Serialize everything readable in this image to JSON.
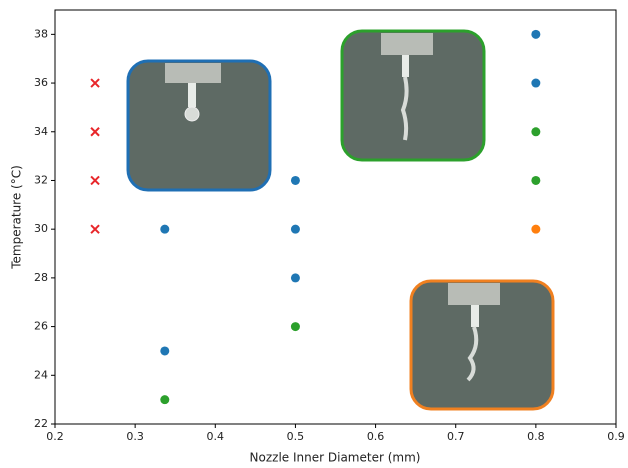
{
  "chart_data": {
    "type": "scatter",
    "x_label": "Nozzle Inner Diameter (mm)",
    "y_label": "Temperature (°C)",
    "xlim": [
      0.2,
      0.9
    ],
    "xticks": [
      0.2,
      0.3,
      0.4,
      0.5,
      0.6,
      0.7,
      0.8,
      0.9
    ],
    "ylim": [
      22,
      39
    ],
    "yticks": [
      22,
      24,
      26,
      28,
      30,
      32,
      34,
      36,
      38
    ],
    "series": [
      {
        "color": "#e8262a",
        "marker": "x",
        "x": [
          0.25,
          0.25,
          0.25,
          0.25
        ],
        "values": [
          30,
          32,
          34,
          36
        ]
      },
      {
        "color": "#1f77b4",
        "marker": "o",
        "x": [
          0.337,
          0.337,
          0.5,
          0.5,
          0.5,
          0.8,
          0.8
        ],
        "values": [
          30,
          25,
          32,
          30,
          28,
          38,
          36
        ]
      },
      {
        "color": "#2ca02c",
        "marker": "o",
        "x": [
          0.337,
          0.5,
          0.8,
          0.8
        ],
        "values": [
          23,
          26,
          34,
          32
        ]
      },
      {
        "color": "#ff7f0e",
        "marker": "o",
        "x": [
          0.8
        ],
        "values": [
          30
        ]
      }
    ]
  }
}
